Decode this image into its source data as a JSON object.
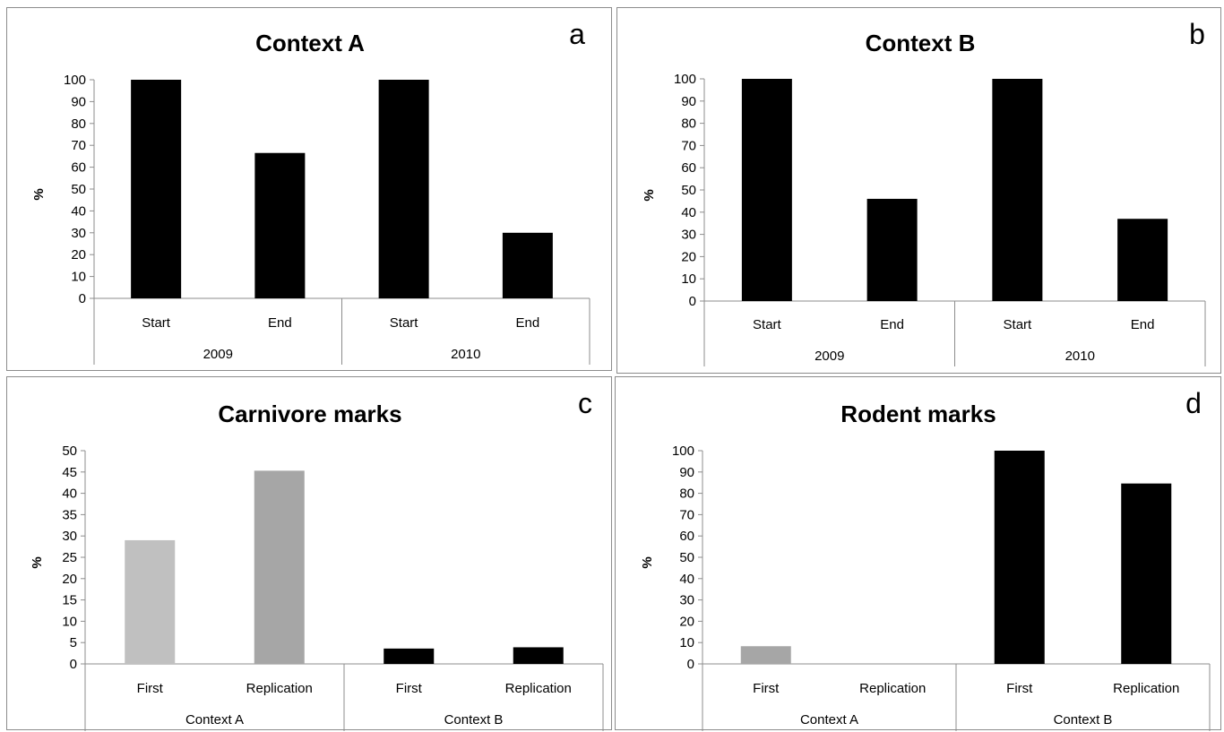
{
  "chart_data": [
    {
      "id": "a",
      "type": "bar",
      "title": "Context A",
      "panel_letter": "a",
      "ylabel": "%",
      "ylim": [
        0,
        100
      ],
      "yticks": [
        0,
        10,
        20,
        30,
        40,
        50,
        60,
        70,
        80,
        90,
        100
      ],
      "groups": [
        "2009",
        "2010"
      ],
      "categories": [
        "Start",
        "End",
        "Start",
        "End"
      ],
      "values": [
        100,
        66.5,
        100,
        30
      ],
      "colors": [
        "#000000",
        "#000000",
        "#000000",
        "#000000"
      ],
      "grid": false,
      "legend": "none"
    },
    {
      "id": "b",
      "type": "bar",
      "title": "Context B",
      "panel_letter": "b",
      "ylabel": "%",
      "ylim": [
        0,
        100
      ],
      "yticks": [
        0,
        10,
        20,
        30,
        40,
        50,
        60,
        70,
        80,
        90,
        100
      ],
      "groups": [
        "2009",
        "2010"
      ],
      "categories": [
        "Start",
        "End",
        "Start",
        "End"
      ],
      "values": [
        100,
        46,
        100,
        37
      ],
      "colors": [
        "#000000",
        "#000000",
        "#000000",
        "#000000"
      ],
      "grid": false,
      "legend": "none"
    },
    {
      "id": "c",
      "type": "bar",
      "title": "Carnivore marks",
      "panel_letter": "c",
      "ylabel": "%",
      "ylim": [
        0,
        50
      ],
      "yticks": [
        0,
        5,
        10,
        15,
        20,
        25,
        30,
        35,
        40,
        45,
        50
      ],
      "groups": [
        "Context A",
        "Context B"
      ],
      "categories": [
        "First",
        "Replication",
        "First",
        "Replication"
      ],
      "values": [
        29,
        45.3,
        3.6,
        3.9
      ],
      "colors": [
        "#c0c0c0",
        "#a6a6a6",
        "#000000",
        "#000000"
      ],
      "grid": false,
      "legend": "none"
    },
    {
      "id": "d",
      "type": "bar",
      "title": "Rodent marks",
      "panel_letter": "d",
      "ylabel": "%",
      "ylim": [
        0,
        100
      ],
      "yticks": [
        0,
        10,
        20,
        30,
        40,
        50,
        60,
        70,
        80,
        90,
        100
      ],
      "groups": [
        "Context A",
        "Context B"
      ],
      "categories": [
        "First",
        "Replication",
        "First",
        "Replication"
      ],
      "values": [
        8.3,
        0,
        100,
        84.6
      ],
      "colors": [
        "#a6a6a6",
        "#a6a6a6",
        "#000000",
        "#000000"
      ],
      "grid": false,
      "legend": "none"
    }
  ]
}
